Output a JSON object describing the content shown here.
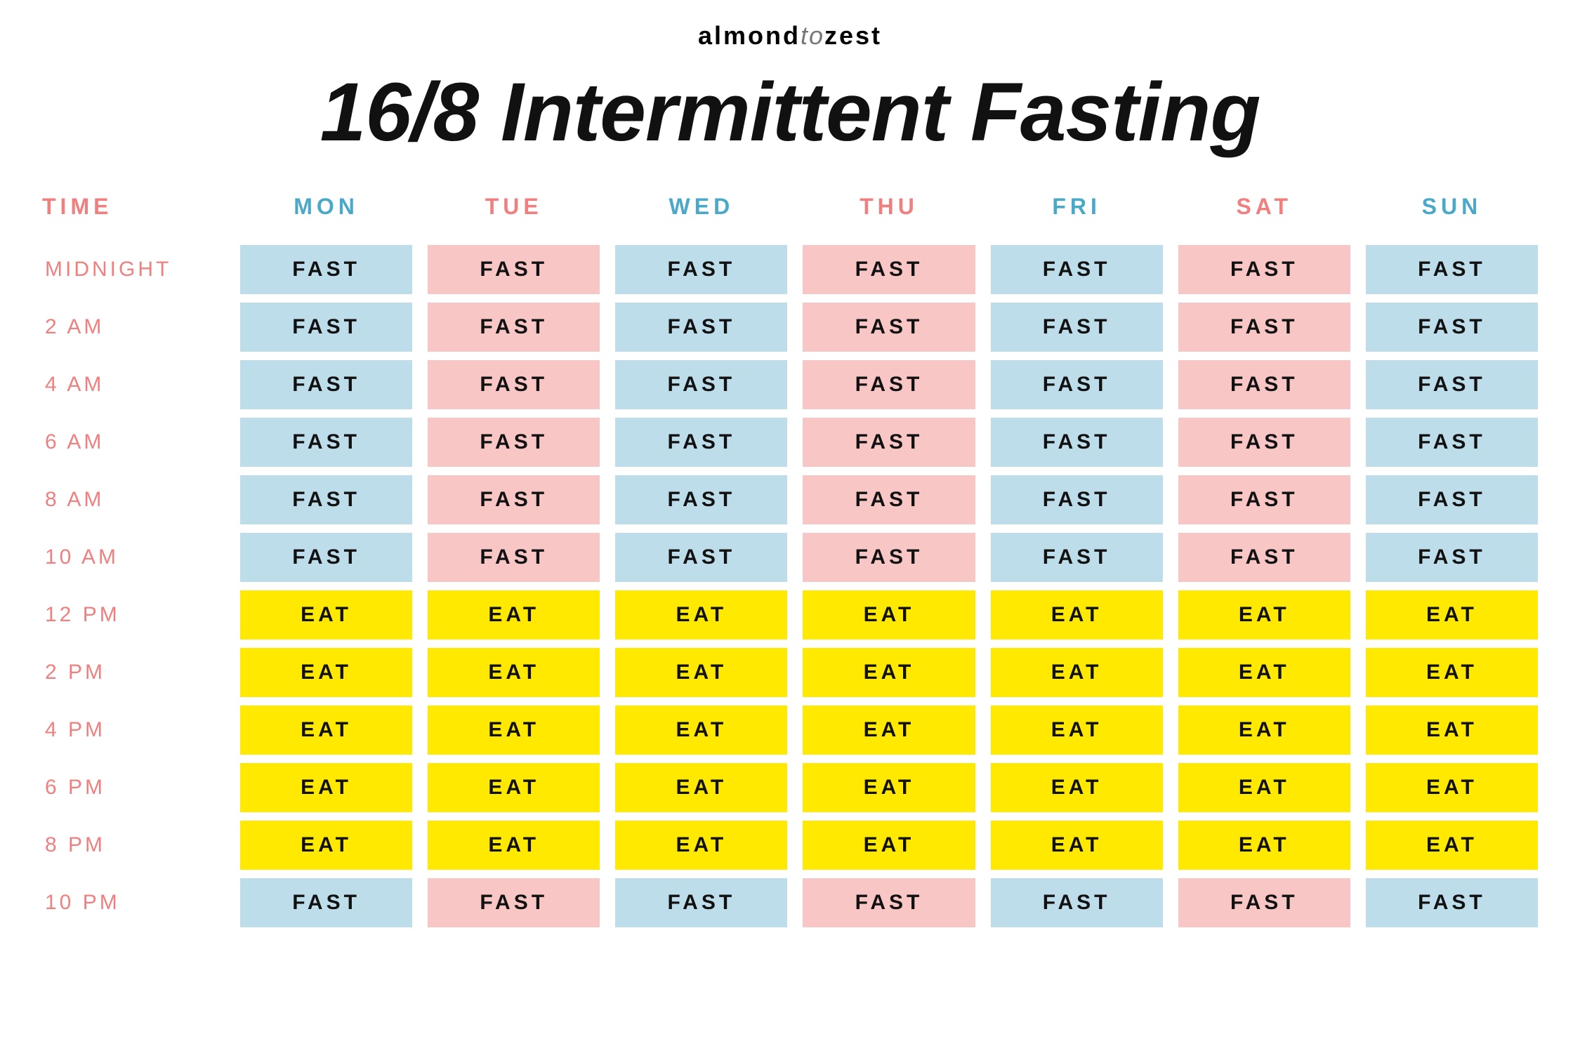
{
  "brand": {
    "part1": "almond",
    "part2": "to",
    "part3": "zest"
  },
  "title": "16/8 Intermittent Fasting",
  "colors": {
    "pink_text": "#f08080",
    "blue_text": "#4aa8c9",
    "blue_cell": "#bdddea",
    "pink_cell": "#f9c6c6",
    "yellow_cell": "#ffe900",
    "black": "#111111"
  },
  "header": {
    "time_label": "TIME",
    "days": [
      {
        "label": "MON",
        "color": "blue"
      },
      {
        "label": "TUE",
        "color": "pink"
      },
      {
        "label": "WED",
        "color": "blue"
      },
      {
        "label": "THU",
        "color": "pink"
      },
      {
        "label": "FRI",
        "color": "blue"
      },
      {
        "label": "SAT",
        "color": "pink"
      },
      {
        "label": "SUN",
        "color": "blue"
      }
    ]
  },
  "labels": {
    "fast": "FAST",
    "eat": "EAT"
  },
  "times": [
    "MIDNIGHT",
    "2 AM",
    "4 AM",
    "6 AM",
    "8 AM",
    "10 AM",
    "12 PM",
    "2 PM",
    "4 PM",
    "6 PM",
    "8 PM",
    "10 PM"
  ],
  "day_fast_colors": [
    "blue",
    "pink",
    "blue",
    "pink",
    "blue",
    "pink",
    "blue"
  ],
  "row_states": [
    "fast",
    "fast",
    "fast",
    "fast",
    "fast",
    "fast",
    "eat",
    "eat",
    "eat",
    "eat",
    "eat",
    "fast"
  ]
}
